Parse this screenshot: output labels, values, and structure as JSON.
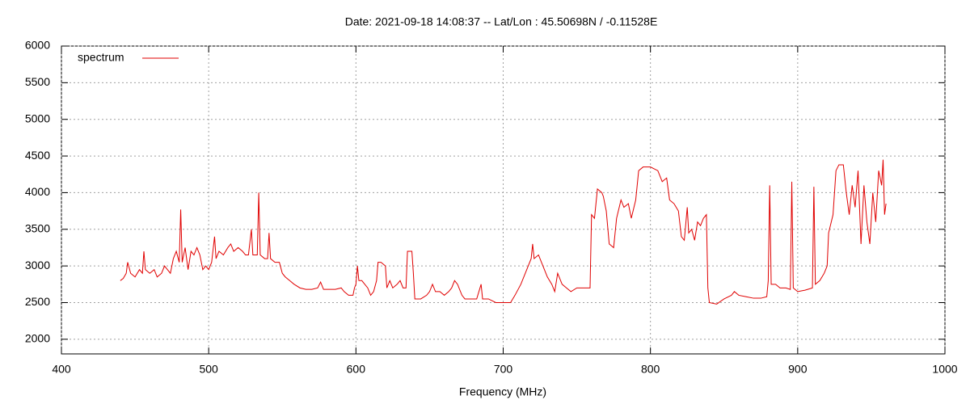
{
  "chart_data": {
    "type": "line",
    "title": "Date: 2021-09-18 14:08:37  --  Lat/Lon : 45.50698N / -0.11528E",
    "x_label": "Frequency (MHz)",
    "xlim": [
      400,
      1000
    ],
    "xticks": [
      400,
      500,
      600,
      700,
      800,
      900,
      1000
    ],
    "ylim": [
      1800,
      6000
    ],
    "yticks": [
      2000,
      2500,
      3000,
      3500,
      4000,
      4500,
      5000,
      5500,
      6000
    ],
    "grid": true,
    "legend": "top-left",
    "x": [
      440,
      442,
      444,
      445,
      447,
      450,
      453,
      455,
      456,
      457,
      460,
      463,
      465,
      468,
      470,
      472,
      474,
      476,
      478,
      480,
      481,
      482,
      484,
      486,
      488,
      490,
      492,
      494,
      496,
      498,
      500,
      502,
      504,
      505,
      507,
      510,
      513,
      515,
      517,
      520,
      523,
      525,
      527,
      529,
      530,
      533,
      534,
      535,
      538,
      540,
      541,
      542,
      545,
      548,
      550,
      552,
      555,
      558,
      562,
      566,
      570,
      574,
      576,
      578,
      582,
      586,
      590,
      592,
      595,
      598,
      599,
      600,
      601,
      602,
      604,
      606,
      608,
      610,
      612,
      614,
      615,
      617,
      620,
      621,
      623,
      625,
      628,
      630,
      632,
      634,
      635,
      638,
      639,
      640,
      644,
      648,
      650,
      652,
      654,
      657,
      660,
      663,
      665,
      667,
      669,
      672,
      674,
      678,
      682,
      685,
      686,
      690,
      695,
      700,
      705,
      708,
      712,
      716,
      719,
      720,
      721,
      724,
      727,
      730,
      733,
      735,
      737,
      740,
      743,
      746,
      750,
      755,
      759,
      760,
      762,
      764,
      767,
      768,
      770,
      772,
      775,
      777,
      780,
      782,
      785,
      787,
      790,
      792,
      795,
      800,
      805,
      808,
      811,
      813,
      816,
      819,
      821,
      823,
      825,
      826,
      828,
      830,
      832,
      834,
      836,
      838,
      839,
      840,
      845,
      850,
      855,
      857,
      860,
      865,
      870,
      875,
      879,
      880,
      881,
      882,
      885,
      888,
      892,
      895,
      896,
      897,
      900,
      905,
      910,
      911,
      912,
      915,
      918,
      920,
      921,
      924,
      926,
      928,
      931,
      933,
      935,
      937,
      939,
      941,
      943,
      945,
      947,
      949,
      951,
      953,
      955,
      957,
      958,
      959,
      960
    ],
    "series": [
      {
        "name": "spectrum",
        "color": "#e00000",
        "values": [
          2800,
          2830,
          2900,
          3050,
          2900,
          2850,
          2950,
          2900,
          3200,
          2950,
          2900,
          2950,
          2850,
          2900,
          3000,
          2950,
          2900,
          3100,
          3200,
          3050,
          3770,
          3050,
          3250,
          2950,
          3200,
          3150,
          3250,
          3150,
          2950,
          3000,
          2950,
          3050,
          3400,
          3100,
          3200,
          3150,
          3250,
          3300,
          3200,
          3250,
          3200,
          3150,
          3150,
          3500,
          3150,
          3150,
          4000,
          3150,
          3100,
          3100,
          3450,
          3100,
          3050,
          3050,
          2900,
          2850,
          2800,
          2750,
          2700,
          2680,
          2680,
          2700,
          2780,
          2680,
          2680,
          2680,
          2700,
          2650,
          2600,
          2600,
          2700,
          2750,
          3000,
          2800,
          2800,
          2750,
          2700,
          2600,
          2650,
          2800,
          3050,
          3050,
          3000,
          2700,
          2800,
          2700,
          2750,
          2800,
          2700,
          2700,
          3200,
          3200,
          2900,
          2550,
          2550,
          2600,
          2650,
          2750,
          2650,
          2650,
          2600,
          2650,
          2700,
          2800,
          2750,
          2600,
          2550,
          2550,
          2550,
          2750,
          2550,
          2550,
          2500,
          2500,
          2500,
          2600,
          2750,
          2950,
          3100,
          3300,
          3100,
          3150,
          3000,
          2850,
          2750,
          2650,
          2900,
          2750,
          2700,
          2650,
          2700,
          2700,
          2700,
          3700,
          3650,
          4050,
          4000,
          3950,
          3750,
          3300,
          3250,
          3650,
          3900,
          3800,
          3850,
          3650,
          3900,
          4300,
          4350,
          4350,
          4300,
          4150,
          4200,
          3900,
          3850,
          3750,
          3400,
          3350,
          3800,
          3450,
          3500,
          3350,
          3600,
          3550,
          3650,
          3700,
          2700,
          2500,
          2480,
          2550,
          2600,
          2650,
          2600,
          2580,
          2560,
          2560,
          2580,
          2800,
          4100,
          2750,
          2750,
          2700,
          2700,
          2680,
          4150,
          2700,
          2650,
          2670,
          2700,
          4080,
          2750,
          2800,
          2900,
          3000,
          3450,
          3700,
          4300,
          4380,
          4380,
          4000,
          3700,
          4100,
          3800,
          4300,
          3300,
          4100,
          3600,
          3300,
          4000,
          3600,
          4300,
          4100,
          4450,
          3700,
          3850
        ]
      }
    ]
  }
}
